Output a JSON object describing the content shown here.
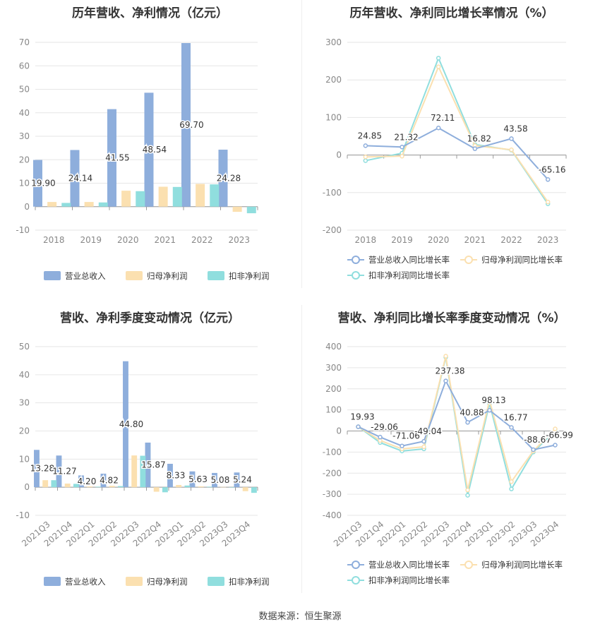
{
  "colors": {
    "revenue": "#8eaedc",
    "net_profit": "#fbe0b0",
    "deducted_profit": "#90dede",
    "grid": "#e6e6e6",
    "axis": "#999999",
    "text": "#333333"
  },
  "source_text": "数据来源：恒生聚源",
  "chart_data": [
    {
      "id": "annual-amount",
      "type": "bar",
      "title": "历年营收、净利情况（亿元）",
      "categories": [
        "2018",
        "2019",
        "2020",
        "2021",
        "2022",
        "2023"
      ],
      "series": [
        {
          "name": "营业总收入",
          "values": [
            19.9,
            24.14,
            41.55,
            48.54,
            69.7,
            24.28
          ],
          "labels": [
            "19.90",
            "24.14",
            "41.55",
            "48.54",
            "69.70",
            "24.28"
          ]
        },
        {
          "name": "归母净利润",
          "values": [
            2.0,
            2.0,
            6.8,
            8.5,
            9.7,
            -2.2
          ]
        },
        {
          "name": "扣非净利润",
          "values": [
            1.6,
            1.8,
            6.6,
            8.4,
            9.5,
            -2.8
          ]
        }
      ],
      "ylim": [
        -10,
        70
      ],
      "yticks": [
        -10,
        0,
        10,
        20,
        30,
        40,
        50,
        60,
        70
      ],
      "grid": true,
      "legend": "bottom"
    },
    {
      "id": "annual-growth",
      "type": "line",
      "title": "历年营收、净利同比增长率情况（%）",
      "categories": [
        "2018",
        "2019",
        "2020",
        "2021",
        "2022",
        "2023"
      ],
      "series": [
        {
          "name": "营业总收入同比增长率",
          "values": [
            24.85,
            21.32,
            72.11,
            16.82,
            43.58,
            -65.16
          ],
          "labels": [
            "24.85",
            "21.32",
            "72.11",
            "16.82",
            "43.58",
            "-65.16"
          ]
        },
        {
          "name": "归母净利润同比增长率",
          "values": [
            -5,
            -3,
            235,
            25,
            14,
            -125
          ]
        },
        {
          "name": "扣非净利润同比增长率",
          "values": [
            -15,
            5,
            258,
            28,
            13,
            -130
          ]
        }
      ],
      "ylim": [
        -200,
        300
      ],
      "yticks": [
        -200,
        -100,
        0,
        100,
        200,
        300
      ],
      "grid": true,
      "legend": "bottom"
    },
    {
      "id": "quarterly-amount",
      "type": "bar",
      "title": "营收、净利季度变动情况（亿元）",
      "categories": [
        "2021Q3",
        "2021Q4",
        "2022Q1",
        "2022Q2",
        "2022Q3",
        "2022Q4",
        "2023Q1",
        "2023Q2",
        "2023Q3",
        "2023Q4"
      ],
      "series": [
        {
          "name": "营业总收入",
          "values": [
            13.28,
            11.27,
            4.2,
            4.82,
            44.8,
            15.87,
            8.33,
            5.63,
            5.08,
            5.24
          ],
          "labels": [
            "13.28",
            "11.27",
            "4.20",
            "4.82",
            "44.80",
            "15.87",
            "8.33",
            "5.63",
            "5.08",
            "5.24"
          ]
        },
        {
          "name": "归母净利润",
          "values": [
            2.5,
            1.3,
            0.3,
            0.5,
            11.3,
            -1.6,
            0.8,
            0.3,
            0.1,
            -1.4
          ]
        },
        {
          "name": "扣非净利润",
          "values": [
            2.5,
            1.2,
            0.2,
            0.4,
            11.2,
            -1.8,
            0.6,
            0.2,
            0.0,
            -2.0
          ]
        }
      ],
      "ylim": [
        -10,
        50
      ],
      "yticks": [
        -10,
        0,
        10,
        20,
        30,
        40,
        50
      ],
      "grid": true,
      "legend": "bottom"
    },
    {
      "id": "quarterly-growth",
      "type": "line",
      "title": "营收、净利同比增长率季度变动情况（%）",
      "categories": [
        "2021Q3",
        "2021Q4",
        "2022Q1",
        "2022Q2",
        "2022Q3",
        "2022Q4",
        "2023Q1",
        "2023Q2",
        "2023Q3",
        "2023Q4"
      ],
      "series": [
        {
          "name": "营业总收入同比增长率",
          "values": [
            19.93,
            -29.06,
            -71.06,
            -49.04,
            237.38,
            40.88,
            98.13,
            16.77,
            -88.67,
            -66.99
          ],
          "labels": [
            "19.93",
            "-29.06",
            "-71.06",
            "-49.04",
            "237.38",
            "40.88",
            "98.13",
            "16.77",
            "-88.67",
            "-66.99"
          ]
        },
        {
          "name": "归母净利润同比增长率",
          "values": [
            20,
            -45,
            -85,
            -75,
            355,
            -280,
            145,
            -240,
            -95,
            10
          ]
        },
        {
          "name": "扣非净利润同比增长率",
          "values": [
            20,
            -55,
            -95,
            -85,
            350,
            -305,
            130,
            -275,
            -100,
            0
          ]
        }
      ],
      "ylim": [
        -400,
        400
      ],
      "yticks": [
        -400,
        -300,
        -200,
        -100,
        0,
        100,
        200,
        300,
        400
      ],
      "grid": true,
      "legend": "bottom"
    }
  ]
}
